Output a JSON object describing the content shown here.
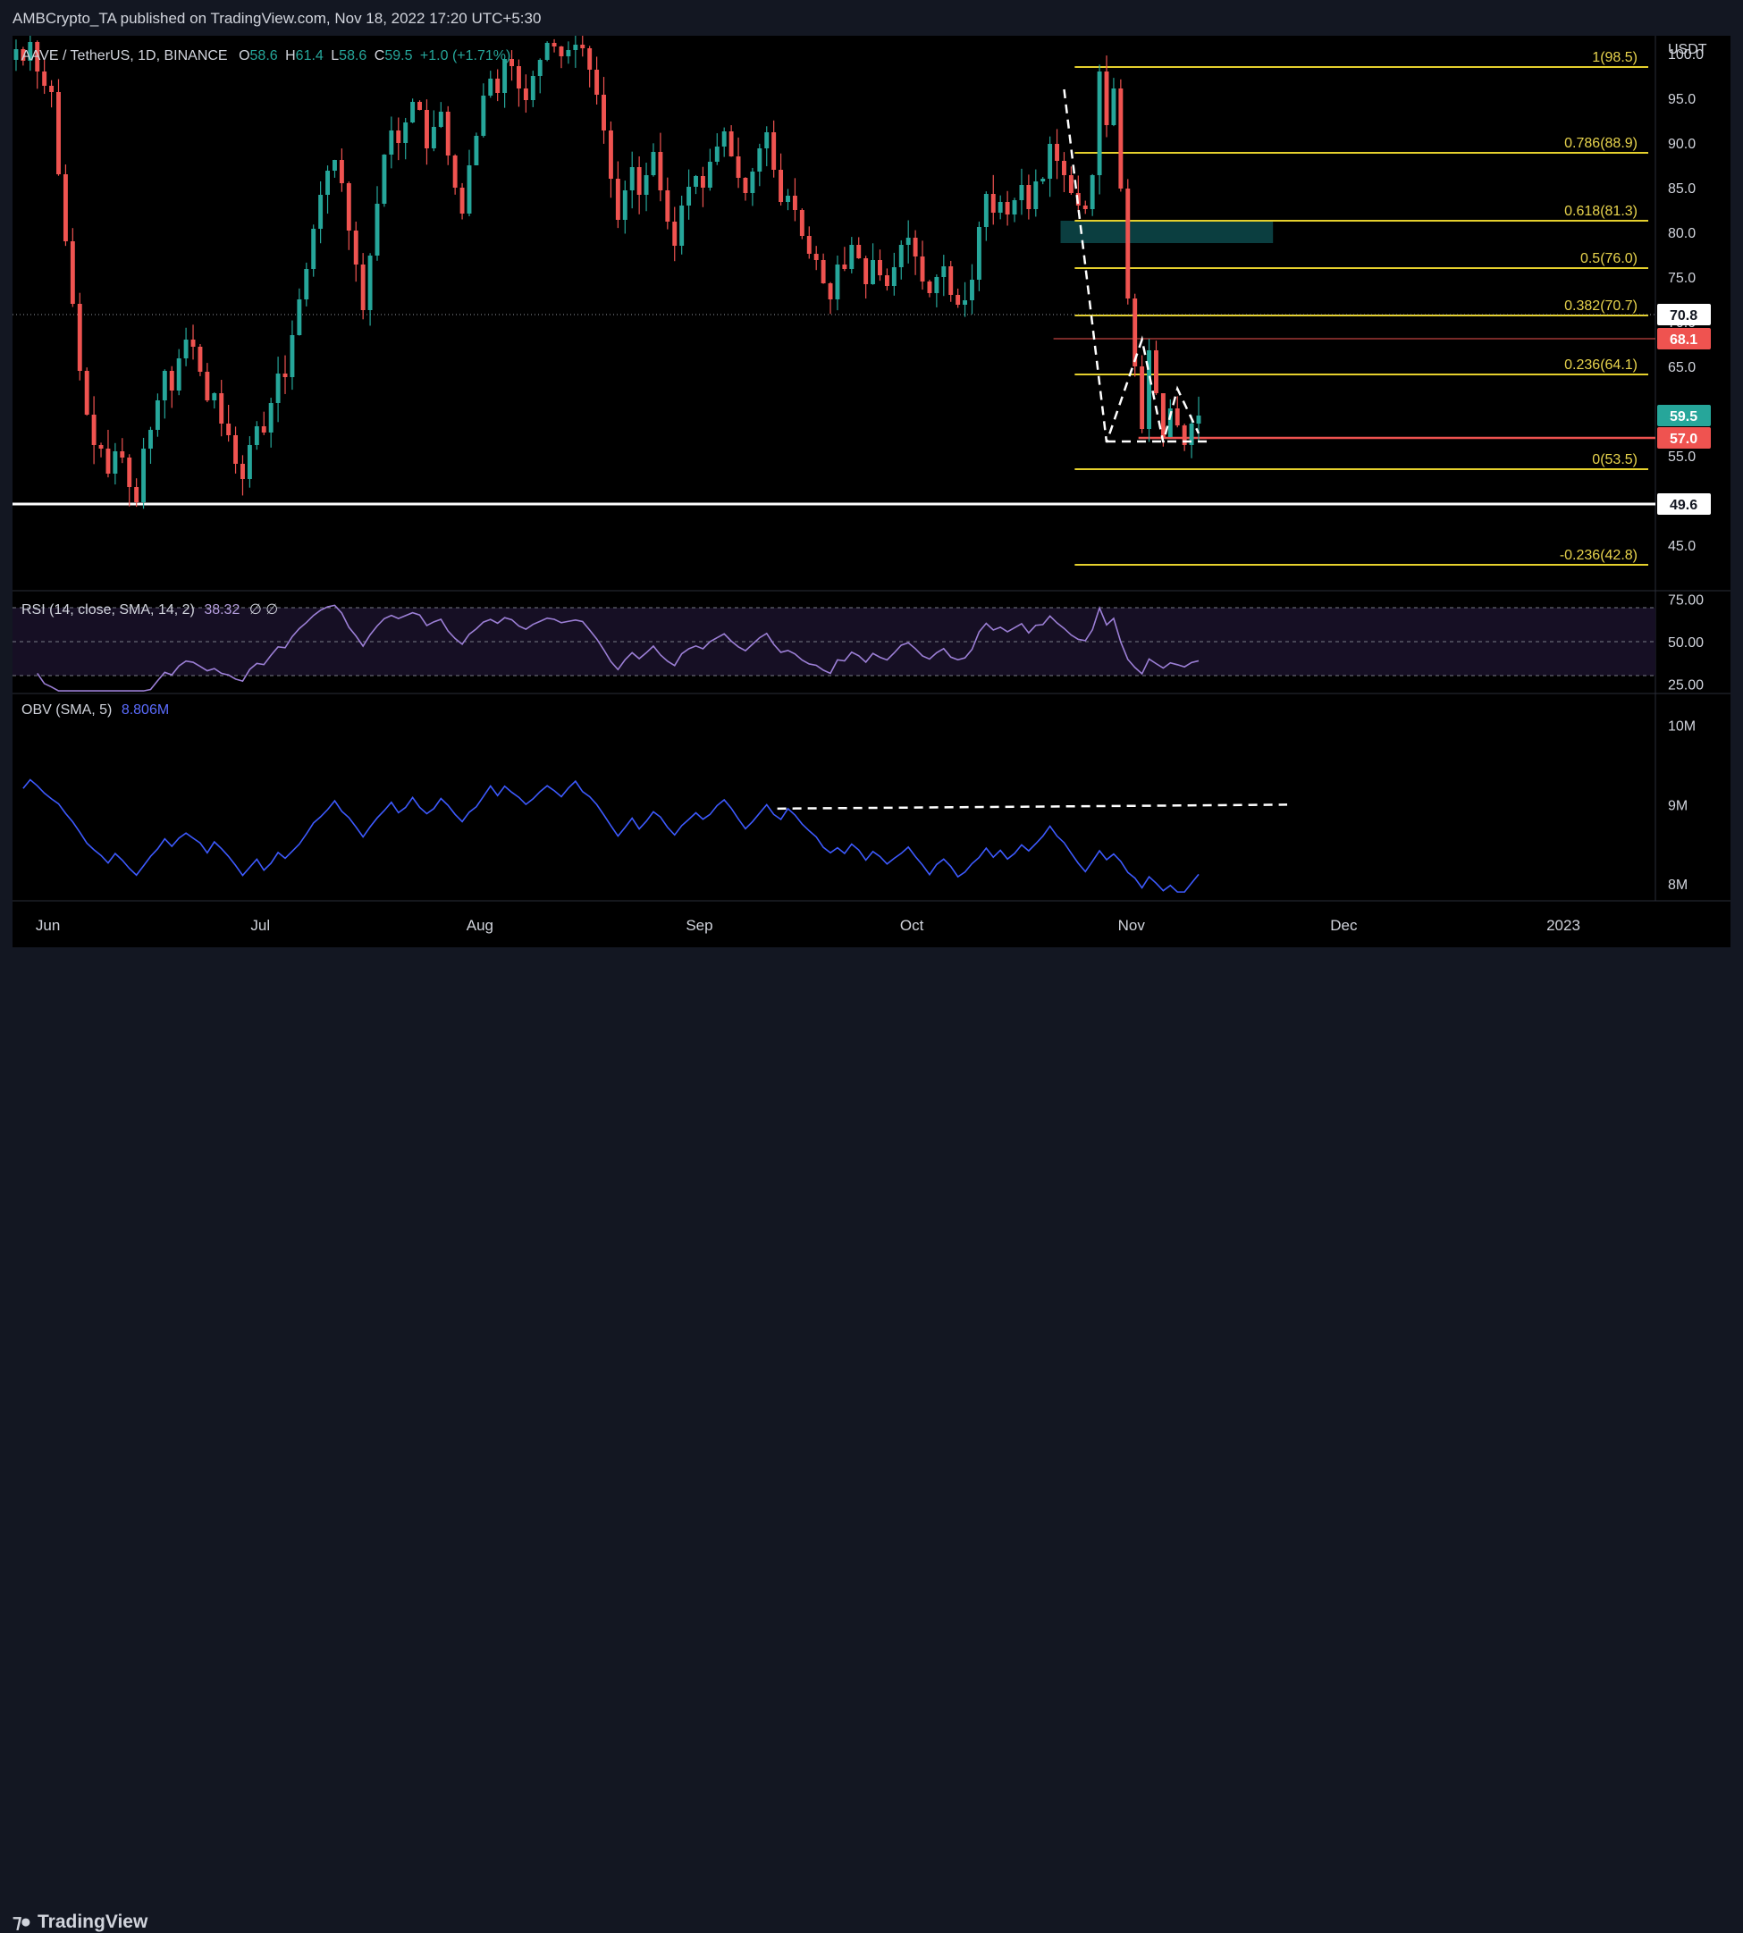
{
  "header": {
    "published": "AMBCrypto_TA published on TradingView.com, Nov 18, 2022 17:20 UTC+5:30"
  },
  "footer": {
    "logo_text": "TradingView"
  },
  "legend": {
    "symbol": "AAVE / TetherUS, 1D, BINANCE",
    "o_label": "O",
    "o_value": "58.6",
    "h_label": "H",
    "h_value": "61.4",
    "l_label": "L",
    "l_value": "58.6",
    "c_label": "C",
    "c_value": "59.5",
    "change": "+1.0 (+1.71%)"
  },
  "rsi_legend": {
    "label": "RSI (14, close, SMA, 14, 2)",
    "value": "38.32",
    "extra": "∅ ∅"
  },
  "obv_legend": {
    "label": "OBV (SMA, 5)",
    "value": "8.806M"
  },
  "colors": {
    "up": "#26a69a",
    "down": "#ef5350",
    "fib": "#e5d02d",
    "rsi": "#9c7fd6",
    "obv": "#3d5afe",
    "support": "#ffffff",
    "zone": "#0b3e40"
  },
  "chart_data": [
    {
      "type": "candlestick",
      "panel": "price",
      "currency_label": "USDT",
      "ylim": [
        40,
        102
      ],
      "yticks": [
        45.0,
        50.0,
        55.0,
        60.0,
        65.0,
        70.0,
        75.0,
        80.0,
        85.0,
        90.0,
        95.0,
        100.0
      ],
      "xticks": [
        "Jun",
        "Jul",
        "Aug",
        "Sep",
        "Oct",
        "Nov",
        "Dec",
        "2023"
      ],
      "x_start": "2022-05-27",
      "x_end": "2023-01-14",
      "close": [
        100.5,
        99.2,
        101.3,
        98.0,
        96.4,
        95.7,
        86.5,
        79.0,
        72.0,
        64.5,
        59.6,
        56.2,
        55.8,
        53.0,
        55.5,
        54.8,
        51.5,
        49.8,
        55.8,
        57.9,
        61.2,
        64.5,
        62.3,
        65.9,
        68.0,
        67.2,
        64.4,
        61.2,
        62.0,
        58.6,
        57.3,
        54.1,
        52.4,
        56.2,
        58.3,
        57.6,
        60.9,
        64.2,
        63.8,
        68.5,
        72.5,
        75.9,
        80.4,
        84.2,
        86.9,
        88.1,
        85.5,
        80.2,
        76.4,
        71.3,
        77.4,
        83.2,
        88.7,
        91.4,
        90.0,
        92.3,
        94.6,
        93.7,
        89.4,
        91.8,
        93.5,
        88.6,
        85.0,
        82.1,
        87.5,
        90.8,
        95.3,
        97.2,
        95.6,
        99.4,
        98.6,
        96.1,
        94.8,
        97.5,
        99.3,
        101.2,
        100.8,
        99.7,
        100.4,
        101.0,
        100.6,
        98.2,
        95.4,
        91.4,
        86.0,
        81.4,
        84.7,
        87.3,
        84.2,
        86.4,
        89.0,
        84.7,
        81.2,
        78.5,
        83.0,
        85.1,
        86.3,
        85.0,
        87.9,
        89.6,
        91.3,
        88.5,
        86.1,
        84.4,
        86.8,
        89.4,
        91.2,
        87.0,
        83.4,
        84.1,
        82.5,
        79.6,
        77.6,
        76.9,
        74.3,
        72.5,
        76.4,
        75.9,
        78.6,
        77.1,
        74.2,
        76.9,
        75.2,
        74.0,
        76.1,
        78.6,
        79.4,
        77.3,
        74.5,
        73.2,
        75.0,
        76.2,
        73.0,
        71.9,
        72.4,
        74.7,
        80.6,
        84.3,
        82.2,
        83.4,
        82.0,
        83.6,
        85.3,
        82.6,
        85.7,
        86.0,
        89.9,
        88.0,
        86.4,
        84.4,
        83.0,
        82.6,
        86.4,
        98.0,
        92.0,
        96.1,
        84.9,
        72.6,
        65.0,
        58.0,
        66.8,
        62.0,
        57.1,
        60.3,
        58.4,
        56.2,
        58.6,
        59.5
      ],
      "fib_levels": [
        {
          "label": "1(98.5)",
          "value": 98.5
        },
        {
          "label": "0.786(88.9)",
          "value": 88.9
        },
        {
          "label": "0.618(81.3)",
          "value": 81.3
        },
        {
          "label": "0.5(76.0)",
          "value": 76.0
        },
        {
          "label": "0.382(70.7)",
          "value": 70.7
        },
        {
          "label": "0.236(64.1)",
          "value": 64.1
        },
        {
          "label": "0(53.5)",
          "value": 53.5
        },
        {
          "label": "-0.236(42.8)",
          "value": 42.8
        }
      ],
      "horizontal_lines": [
        {
          "value": 49.6,
          "label": "49.6",
          "style": "white"
        },
        {
          "value": 57.0,
          "label": "57.0",
          "style": "red"
        },
        {
          "value": 68.1,
          "label": "68.1",
          "style": "red-thin"
        },
        {
          "value": 70.8,
          "label": "70.8",
          "style": "dotted"
        }
      ],
      "last_price": {
        "value": 59.5,
        "label": "59.5"
      },
      "zone": {
        "low": 78.8,
        "high": 81.3
      }
    },
    {
      "type": "line",
      "panel": "rsi",
      "name": "RSI (14, close, SMA, 14, 2)",
      "ylim": [
        20,
        80
      ],
      "yticks": [
        25.0,
        50.0,
        75.0
      ],
      "bands": [
        30,
        70
      ]
    },
    {
      "type": "line",
      "panel": "obv",
      "name": "OBV (SMA, 5)",
      "ylim": [
        7.8,
        10.4
      ],
      "yticks": [
        "10M",
        "9M",
        "8M"
      ],
      "ytick_values": [
        10,
        9,
        8
      ],
      "support_level": 8.95
    }
  ]
}
